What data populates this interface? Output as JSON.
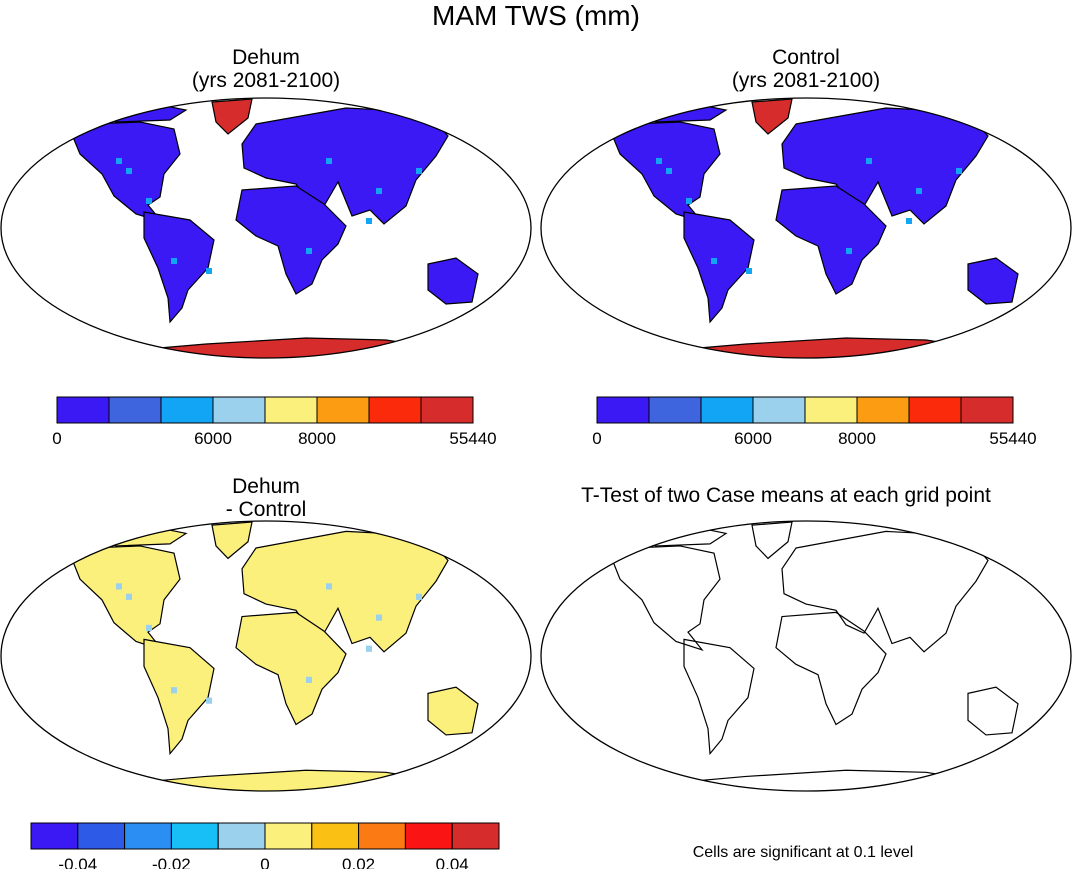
{
  "figure": {
    "title": "MAM TWS (mm)"
  },
  "chart_data": [
    {
      "type": "heatmap",
      "panel": "top-left",
      "title": "Dehum",
      "subtitle": "(yrs 2081-2100)",
      "colorbar": {
        "colors": [
          "#3a19f5",
          "#3e64de",
          "#12a5f5",
          "#9cd1ee",
          "#fbf07c",
          "#fb9c12",
          "#fb2a0a",
          "#d62c2c"
        ],
        "tick_labels": [
          "0",
          "6000",
          "8000",
          "55440"
        ],
        "tick_at_box_edge": [
          0,
          3,
          5,
          8
        ]
      },
      "description_values": {
        "land_most": "0",
        "greenland_antarctica": "55440"
      }
    },
    {
      "type": "heatmap",
      "panel": "top-right",
      "title": "Control",
      "subtitle": "(yrs 2081-2100)",
      "colorbar": {
        "colors": [
          "#3a19f5",
          "#3e64de",
          "#12a5f5",
          "#9cd1ee",
          "#fbf07c",
          "#fb9c12",
          "#fb2a0a",
          "#d62c2c"
        ],
        "tick_labels": [
          "0",
          "6000",
          "8000",
          "55440"
        ],
        "tick_at_box_edge": [
          0,
          3,
          5,
          8
        ]
      }
    },
    {
      "type": "heatmap",
      "panel": "bottom-left",
      "title": "Dehum",
      "subtitle": "- Control",
      "colorbar": {
        "colors": [
          "#3a19f5",
          "#2d5ae6",
          "#2a8ef2",
          "#17bff6",
          "#9cd1ee",
          "#fbf07c",
          "#fbc014",
          "#fb7a14",
          "#fb1414",
          "#d62c2c"
        ],
        "tick_labels": [
          "-0.04",
          "-0.02",
          "0",
          "0.02",
          "0.04"
        ],
        "tick_at_box_edge": [
          1,
          3,
          5,
          7,
          9
        ]
      }
    },
    {
      "type": "heatmap",
      "panel": "bottom-right",
      "title": "T-Test of two Case means at each grid point",
      "note": "Cells are significant at 0.1 level"
    }
  ]
}
